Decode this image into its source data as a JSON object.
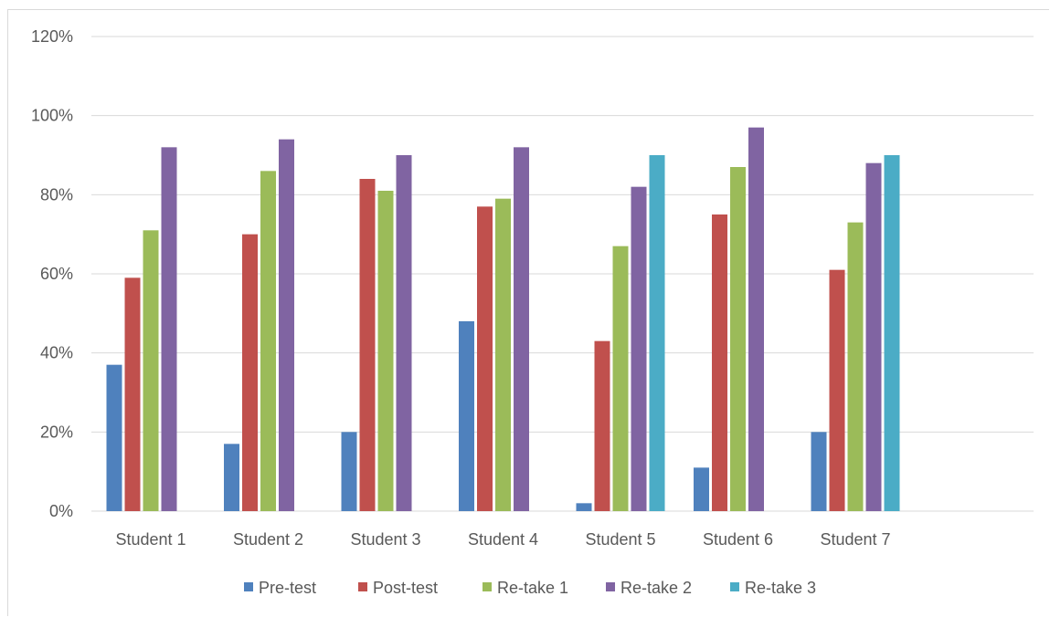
{
  "chart_data": {
    "type": "bar",
    "categories": [
      "Student 1",
      "Student 2",
      "Student 3",
      "Student 4",
      "Student 5",
      "Student 6",
      "Student 7"
    ],
    "series": [
      {
        "name": "Pre-test",
        "color": "#4f81bd",
        "values": [
          37,
          17,
          20,
          48,
          2,
          11,
          20
        ]
      },
      {
        "name": "Post-test",
        "color": "#c0504d",
        "values": [
          59,
          70,
          84,
          77,
          43,
          75,
          61
        ]
      },
      {
        "name": "Re-take 1",
        "color": "#9bbb59",
        "values": [
          71,
          86,
          81,
          79,
          67,
          87,
          73
        ]
      },
      {
        "name": "Re-take 2",
        "color": "#8064a2",
        "values": [
          92,
          94,
          90,
          92,
          82,
          97,
          88
        ]
      },
      {
        "name": "Re-take 3",
        "color": "#4bacc6",
        "values": [
          null,
          null,
          null,
          null,
          90,
          null,
          90
        ]
      }
    ],
    "ylim": [
      0,
      120
    ],
    "y_ticks": [
      "0%",
      "20%",
      "40%",
      "60%",
      "80%",
      "100%",
      "120%"
    ],
    "y_unit": "%",
    "grid": true,
    "legend_position": "bottom"
  }
}
